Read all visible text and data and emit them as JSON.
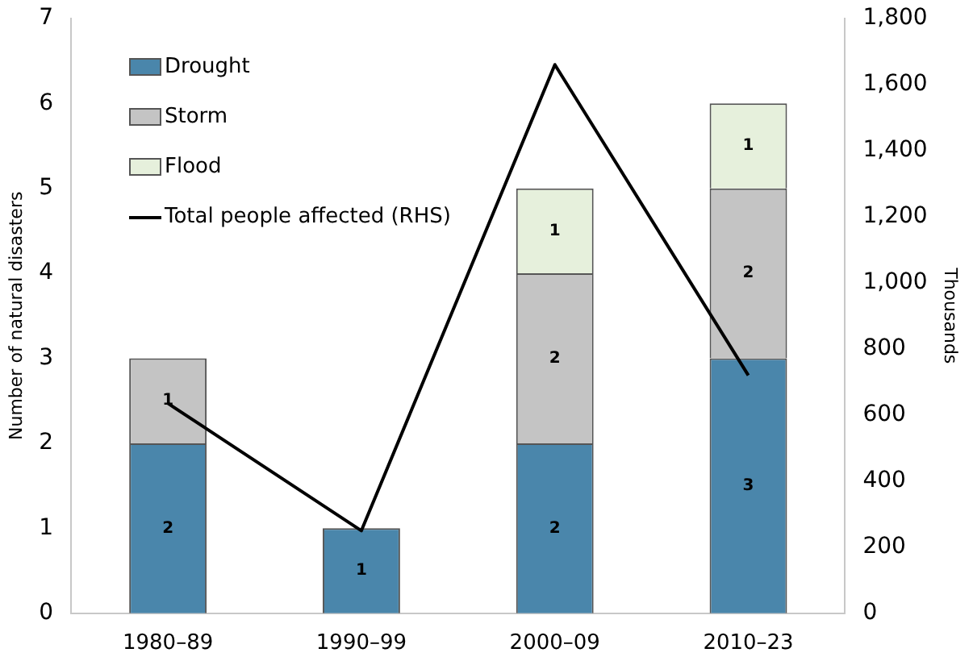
{
  "chart_data": {
    "type": "bar",
    "stacked": true,
    "categories": [
      "1980–89",
      "1990–99",
      "2000–09",
      "2010–23"
    ],
    "ylabel": "Number of natural disasters",
    "y2label": "Thousands",
    "ylim": [
      0,
      7
    ],
    "yticks": [
      0,
      1,
      2,
      3,
      4,
      5,
      6,
      7
    ],
    "y2lim": [
      0,
      1800
    ],
    "y2ticks": [
      0,
      {
        "value": 200,
        "label": "200"
      },
      {
        "value": 400,
        "label": "400"
      },
      {
        "value": 600,
        "label": "600"
      },
      {
        "value": 800,
        "label": "800"
      },
      {
        "value": 1000,
        "label": "1,000"
      },
      {
        "value": 1200,
        "label": "1,200"
      },
      {
        "value": 1400,
        "label": "1,400"
      },
      {
        "value": 1600,
        "label": "1,600"
      },
      {
        "value": 1800,
        "label": "1,800"
      }
    ],
    "grid": false,
    "legend": "top left",
    "series": [
      {
        "name": "Drought",
        "color": "#4a86ab",
        "values": [
          2,
          1,
          2,
          3
        ],
        "value_labels": [
          "2",
          "1",
          "2",
          "3"
        ]
      },
      {
        "name": "Storm",
        "color": "#c4c4c4",
        "values": [
          1,
          null,
          2,
          2
        ],
        "value_labels": [
          "1",
          null,
          "2",
          "2"
        ]
      },
      {
        "name": "Flood",
        "color": "#e6f0dc",
        "values": [
          null,
          null,
          1,
          1
        ],
        "value_labels": [
          null,
          null,
          "1",
          "1"
        ]
      },
      {
        "name": "Total people affected (RHS)",
        "type": "line",
        "axis": "y2",
        "color": "#000000",
        "values": [
          635,
          250,
          1660,
          720
        ]
      }
    ]
  }
}
